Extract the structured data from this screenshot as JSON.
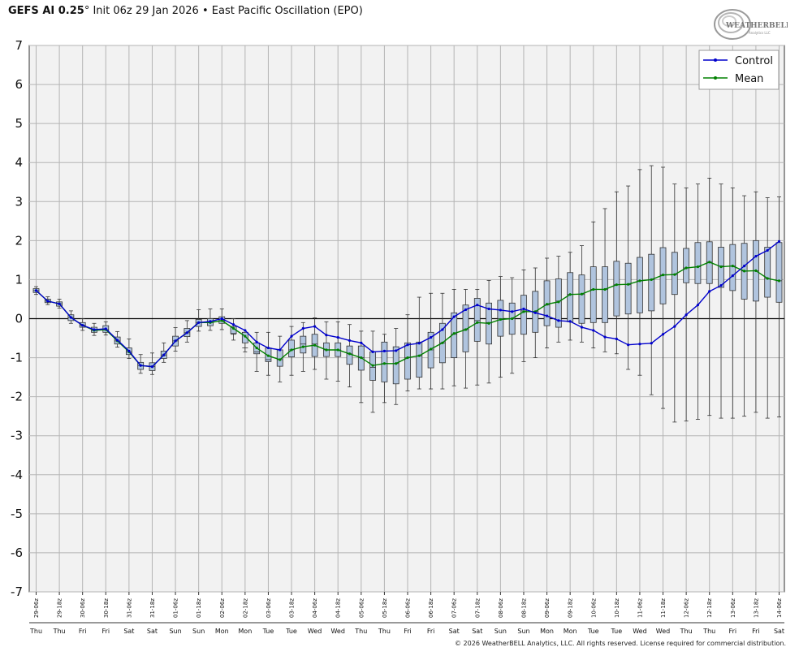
{
  "header": {
    "model": "GEFS AI 0.25",
    "degree": "°",
    "init": "Init 06z 29 Jan 2026",
    "bullet": "•",
    "index_name": "East Pacific Oscillation (EPO)"
  },
  "logo": {
    "text": "WEATHERBELL",
    "sub": "Analytics LLC"
  },
  "footer": {
    "copyright": "© 2026 WeatherBELL Analytics, LLC. All rights reserved. License required for commercial distribution."
  },
  "colors": {
    "control": "#0000cc",
    "mean": "#008000",
    "box_fill": "#b0c4de",
    "plot_bg": "#f2f2f2",
    "grid": "#b4b4b4"
  },
  "chart_data": {
    "type": "box",
    "ylim": [
      -7,
      7
    ],
    "yticks": [
      7,
      6,
      5,
      4,
      3,
      2,
      1,
      0,
      -1,
      -2,
      -3,
      -4,
      -5,
      -6,
      -7
    ],
    "grid": true,
    "legend_position": "top-right",
    "x": [
      "29-06z",
      "29-12z",
      "29-18z",
      "30-00z",
      "30-06z",
      "30-12z",
      "30-18z",
      "31-00z",
      "31-06z",
      "31-12z",
      "31-18z",
      "01-00z",
      "01-06z",
      "01-12z",
      "01-18z",
      "02-00z",
      "02-06z",
      "02-12z",
      "02-18z",
      "03-00z",
      "03-06z",
      "03-12z",
      "03-18z",
      "04-00z",
      "04-06z",
      "04-12z",
      "04-18z",
      "05-00z",
      "05-06z",
      "05-12z",
      "05-18z",
      "06-00z",
      "06-06z",
      "06-12z",
      "06-18z",
      "07-00z",
      "07-06z",
      "07-12z",
      "07-18z",
      "08-00z",
      "08-06z",
      "08-12z",
      "08-18z",
      "09-00z",
      "09-06z",
      "09-12z",
      "09-18z",
      "10-00z",
      "10-06z",
      "10-12z",
      "10-18z",
      "11-00z",
      "11-06z",
      "11-12z",
      "11-18z",
      "12-00z",
      "12-06z",
      "12-12z",
      "12-18z",
      "13-00z",
      "13-06z",
      "13-12z",
      "13-18z",
      "14-00z",
      "14-06z"
    ],
    "x_labels": [
      "29-06z",
      "29-18z",
      "30-06z",
      "30-18z",
      "31-06z",
      "31-18z",
      "01-06z",
      "01-18z",
      "02-06z",
      "02-18z",
      "03-06z",
      "03-18z",
      "04-06z",
      "04-18z",
      "05-06z",
      "05-18z",
      "06-06z",
      "06-18z",
      "07-06z",
      "07-18z",
      "08-06z",
      "08-18z",
      "09-06z",
      "09-18z",
      "10-06z",
      "10-18z",
      "11-06z",
      "11-18z",
      "12-06z",
      "12-18z",
      "13-06z",
      "13-18z",
      "14-06z"
    ],
    "day_labels": [
      "Thu",
      "Thu",
      "Fri",
      "Fri",
      "Sat",
      "Sat",
      "Sun",
      "Sun",
      "Mon",
      "Mon",
      "Tue",
      "Tue",
      "Wed",
      "Wed",
      "Thu",
      "Thu",
      "Fri",
      "Fri",
      "Sat",
      "Sat",
      "Sun",
      "Sun",
      "Mon",
      "Mon",
      "Tue",
      "Tue",
      "Wed",
      "Wed",
      "Thu",
      "Thu",
      "Fri",
      "Fri",
      "Sat"
    ],
    "series": [
      {
        "name": "Control",
        "values": [
          0.72,
          0.45,
          0.38,
          0.03,
          -0.17,
          -0.28,
          -0.26,
          -0.55,
          -0.83,
          -1.2,
          -1.23,
          -0.93,
          -0.57,
          -0.36,
          -0.1,
          -0.07,
          0.0,
          -0.15,
          -0.3,
          -0.6,
          -0.75,
          -0.8,
          -0.45,
          -0.25,
          -0.2,
          -0.42,
          -0.48,
          -0.56,
          -0.62,
          -0.85,
          -0.83,
          -0.82,
          -0.67,
          -0.63,
          -0.48,
          -0.28,
          0.05,
          0.23,
          0.35,
          0.25,
          0.22,
          0.18,
          0.25,
          0.15,
          0.07,
          -0.05,
          -0.07,
          -0.22,
          -0.3,
          -0.47,
          -0.52,
          -0.67,
          -0.65,
          -0.63,
          -0.4,
          -0.2,
          0.1,
          0.35,
          0.7,
          0.85,
          1.1,
          1.35,
          1.6,
          1.75,
          1.98
        ]
      },
      {
        "name": "Mean",
        "values": [
          0.72,
          0.45,
          0.38,
          0.03,
          -0.17,
          -0.3,
          -0.28,
          -0.57,
          -0.85,
          -1.2,
          -1.23,
          -0.93,
          -0.57,
          -0.36,
          -0.1,
          -0.1,
          -0.05,
          -0.25,
          -0.45,
          -0.75,
          -0.95,
          -1.05,
          -0.8,
          -0.72,
          -0.68,
          -0.8,
          -0.8,
          -0.9,
          -1.0,
          -1.2,
          -1.15,
          -1.15,
          -1.0,
          -0.95,
          -0.78,
          -0.62,
          -0.38,
          -0.28,
          -0.1,
          -0.12,
          -0.02,
          0.0,
          0.18,
          0.18,
          0.37,
          0.43,
          0.62,
          0.63,
          0.75,
          0.75,
          0.87,
          0.88,
          0.97,
          1.0,
          1.12,
          1.13,
          1.3,
          1.33,
          1.45,
          1.33,
          1.35,
          1.22,
          1.23,
          1.03,
          0.97
        ]
      }
    ],
    "box": {
      "min": [
        0.62,
        0.36,
        0.27,
        -0.12,
        -0.3,
        -0.43,
        -0.42,
        -0.73,
        -1.02,
        -1.4,
        -1.43,
        -1.12,
        -0.83,
        -0.6,
        -0.32,
        -0.3,
        -0.28,
        -0.55,
        -0.85,
        -1.35,
        -1.45,
        -1.62,
        -1.45,
        -1.35,
        -1.3,
        -1.55,
        -1.6,
        -1.75,
        -2.15,
        -2.4,
        -2.15,
        -2.2,
        -1.85,
        -1.8,
        -1.8,
        -1.8,
        -1.72,
        -1.78,
        -1.7,
        -1.65,
        -1.5,
        -1.4,
        -1.1,
        -1.0,
        -0.75,
        -0.6,
        -0.55,
        -0.6,
        -0.75,
        -0.85,
        -0.9,
        -1.3,
        -1.45,
        -1.95,
        -2.3,
        -2.65,
        -2.62,
        -2.58,
        -2.48,
        -2.55,
        -2.55,
        -2.5,
        -2.4,
        -2.55,
        -2.52
      ],
      "q1": [
        0.67,
        0.41,
        0.32,
        -0.05,
        -0.22,
        -0.35,
        -0.35,
        -0.65,
        -0.92,
        -1.3,
        -1.33,
        -1.02,
        -0.7,
        -0.46,
        -0.2,
        -0.18,
        -0.12,
        -0.38,
        -0.62,
        -0.9,
        -1.1,
        -1.22,
        -0.98,
        -0.88,
        -0.97,
        -0.97,
        -0.97,
        -1.17,
        -1.32,
        -1.58,
        -1.62,
        -1.67,
        -1.55,
        -1.5,
        -1.26,
        -1.13,
        -1.0,
        -0.85,
        -0.58,
        -0.65,
        -0.45,
        -0.4,
        -0.4,
        -0.35,
        -0.18,
        -0.22,
        -0.08,
        -0.12,
        -0.1,
        -0.1,
        0.07,
        0.12,
        0.15,
        0.2,
        0.38,
        0.62,
        0.92,
        0.9,
        0.9,
        0.8,
        0.72,
        0.5,
        0.45,
        0.55,
        0.42
      ],
      "median": [
        0.72,
        0.45,
        0.38,
        0.03,
        -0.17,
        -0.3,
        -0.28,
        -0.57,
        -0.85,
        -1.2,
        -1.23,
        -0.93,
        -0.57,
        -0.36,
        -0.1,
        -0.1,
        -0.05,
        -0.4,
        -0.75,
        -0.85,
        -1.05,
        -1.05,
        -0.8,
        -0.65,
        -0.65,
        -0.8,
        -0.8,
        -0.9,
        -1.0,
        -1.25,
        -1.15,
        -1.15,
        -1.0,
        -0.95,
        -0.8,
        -0.62,
        -0.4,
        -0.28,
        -0.05,
        -0.1,
        0.0,
        0.0,
        0.2,
        0.18,
        0.35,
        0.45,
        0.62,
        0.62,
        0.75,
        0.75,
        0.87,
        0.87,
        0.97,
        1.0,
        1.12,
        1.13,
        1.3,
        1.33,
        1.45,
        1.35,
        1.35,
        1.22,
        1.23,
        1.03,
        0.97
      ],
      "q3": [
        0.77,
        0.5,
        0.43,
        0.1,
        -0.1,
        -0.22,
        -0.18,
        -0.47,
        -0.75,
        -1.12,
        -1.13,
        -0.83,
        -0.45,
        -0.25,
        -0.02,
        0.0,
        0.05,
        -0.2,
        -0.35,
        -0.62,
        -0.75,
        -0.8,
        -0.55,
        -0.45,
        -0.4,
        -0.62,
        -0.62,
        -0.7,
        -0.7,
        -0.85,
        -0.6,
        -0.72,
        -0.62,
        -0.6,
        -0.35,
        -0.12,
        0.15,
        0.35,
        0.52,
        0.4,
        0.47,
        0.4,
        0.6,
        0.7,
        0.97,
        1.02,
        1.18,
        1.12,
        1.33,
        1.33,
        1.47,
        1.42,
        1.57,
        1.65,
        1.82,
        1.7,
        1.8,
        1.95,
        1.97,
        1.83,
        1.9,
        1.93,
        2.0,
        1.83,
        1.95
      ],
      "max": [
        0.82,
        0.56,
        0.5,
        0.2,
        0.0,
        -0.12,
        -0.08,
        -0.33,
        -0.52,
        -0.92,
        -0.88,
        -0.62,
        -0.23,
        -0.05,
        0.23,
        0.25,
        0.25,
        0.0,
        -0.35,
        -0.35,
        -0.35,
        -0.45,
        -0.2,
        -0.1,
        0.02,
        -0.08,
        -0.08,
        -0.15,
        -0.32,
        -0.32,
        -0.4,
        -0.25,
        0.1,
        0.55,
        0.65,
        0.65,
        0.75,
        0.75,
        0.75,
        0.98,
        1.08,
        1.05,
        1.25,
        1.3,
        1.55,
        1.6,
        1.7,
        1.87,
        2.48,
        2.82,
        3.25,
        3.4,
        3.82,
        3.92,
        3.88,
        3.45,
        3.35,
        3.45,
        3.6,
        3.45,
        3.35,
        3.15,
        3.25,
        3.1,
        3.12
      ]
    }
  }
}
